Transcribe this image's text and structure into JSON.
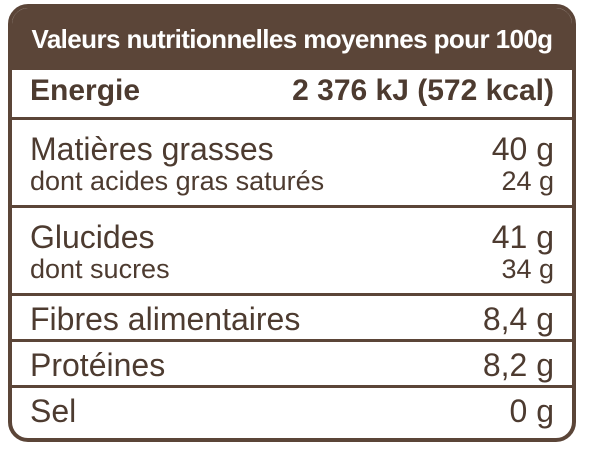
{
  "title": "Valeurs nutritionnelles moyennes pour 100g",
  "colors": {
    "header_bg": "#5b4538",
    "border": "#5b4538",
    "text": "#4d3b30",
    "header_text": "#ffffff"
  },
  "rows": {
    "energy": {
      "label": "Energie",
      "value": "2 376 kJ (572 kcal)"
    },
    "fat": {
      "label": "Matières grasses",
      "value": "40 g"
    },
    "saturated": {
      "label": "dont acides gras saturés",
      "value": "24 g"
    },
    "carbs": {
      "label": "Glucides",
      "value": "41 g"
    },
    "sugars": {
      "label": "dont sucres",
      "value": "34 g"
    },
    "fibre": {
      "label": "Fibres alimentaires",
      "value": "8,4 g"
    },
    "protein": {
      "label": "Protéines",
      "value": "8,2 g"
    },
    "salt": {
      "label": "Sel",
      "value": "0 g"
    }
  }
}
